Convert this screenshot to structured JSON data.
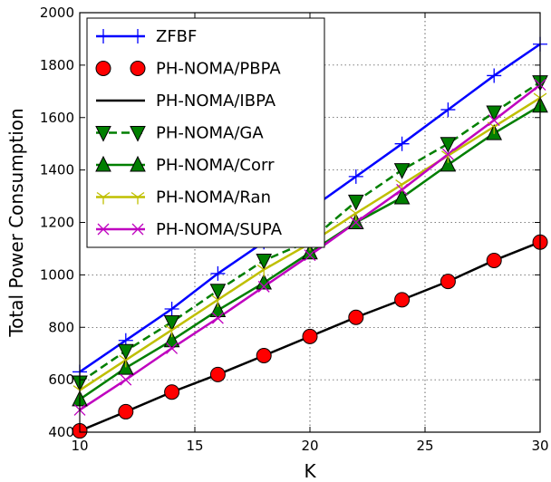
{
  "chart_data": {
    "type": "line",
    "title": "",
    "xlabel": "K",
    "ylabel": "Total Power Consumption",
    "xlim": [
      10,
      30
    ],
    "ylim": [
      400,
      2000
    ],
    "xticks": [
      10,
      15,
      20,
      25,
      30
    ],
    "yticks": [
      400,
      600,
      800,
      1000,
      1200,
      1400,
      1600,
      1800,
      2000
    ],
    "x": [
      10,
      12,
      14,
      16,
      18,
      20,
      22,
      24,
      26,
      28,
      30
    ],
    "legend_position": "upper-left",
    "series": [
      {
        "name": "ZFBF",
        "color": "#0000ff",
        "marker": "plus",
        "dashed": false,
        "values": [
          630,
          750,
          870,
          1005,
          1125,
          1250,
          1375,
          1500,
          1630,
          1760,
          1880
        ]
      },
      {
        "name": "PH-NOMA/PBPA",
        "color": "#ff0000",
        "marker": "circle",
        "dashed": false,
        "no_line": true,
        "values": [
          405,
          478,
          553,
          620,
          692,
          765,
          838,
          905,
          975,
          1055,
          1125
        ]
      },
      {
        "name": "PH-NOMA/IBPA",
        "color": "#000000",
        "marker": "none",
        "dashed": false,
        "values": [
          405,
          478,
          553,
          620,
          692,
          765,
          838,
          905,
          975,
          1055,
          1125
        ]
      },
      {
        "name": "PH-NOMA/GA",
        "color": "#007f00",
        "marker": "triangle-down",
        "dashed": true,
        "values": [
          590,
          710,
          820,
          940,
          1055,
          1130,
          1280,
          1400,
          1500,
          1620,
          1735
        ]
      },
      {
        "name": "PH-NOMA/Corr",
        "color": "#007f00",
        "marker": "triangle-up",
        "dashed": false,
        "values": [
          525,
          645,
          750,
          865,
          970,
          1085,
          1200,
          1295,
          1420,
          1540,
          1645
        ]
      },
      {
        "name": "PH-NOMA/Ran",
        "color": "#bfbf00",
        "marker": "tri",
        "dashed": false,
        "values": [
          560,
          675,
          790,
          905,
          1020,
          1120,
          1235,
          1345,
          1455,
          1565,
          1675
        ]
      },
      {
        "name": "PH-NOMA/SUPA",
        "color": "#bf00bf",
        "marker": "x",
        "dashed": false,
        "values": [
          485,
          600,
          720,
          835,
          955,
          1075,
          1200,
          1325,
          1460,
          1590,
          1725
        ]
      }
    ]
  }
}
